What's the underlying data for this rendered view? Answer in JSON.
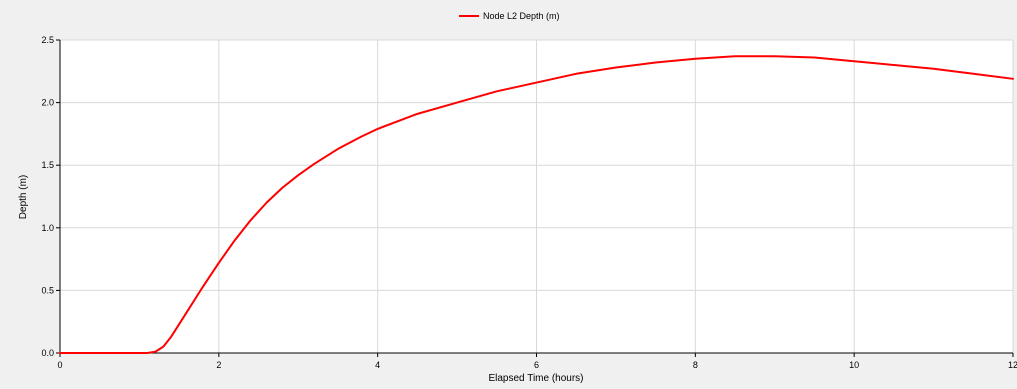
{
  "chart_data": {
    "type": "line",
    "title": "",
    "xlabel": "Elapsed Time (hours)",
    "ylabel": "Depth (m)",
    "xlim": [
      0,
      12
    ],
    "ylim": [
      0,
      2.5
    ],
    "x_ticks": [
      0,
      2,
      4,
      6,
      8,
      10,
      12
    ],
    "x_tick_labels": [
      "0",
      "2",
      "4",
      "6",
      "8",
      "10",
      "12"
    ],
    "y_ticks": [
      0,
      0.5,
      1.0,
      1.5,
      2.0,
      2.5
    ],
    "y_tick_labels": [
      "0.0",
      "0.5",
      "1.0",
      "1.5",
      "2.0",
      "2.5"
    ],
    "grid": true,
    "legend_position": "top-center",
    "series": [
      {
        "name": "Node L2 Depth (m)",
        "color": "#ff0000",
        "x": [
          0,
          1.1,
          1.2,
          1.3,
          1.4,
          1.5,
          1.6,
          1.8,
          2.0,
          2.2,
          2.4,
          2.6,
          2.8,
          3.0,
          3.2,
          3.5,
          3.8,
          4.0,
          4.5,
          5.0,
          5.5,
          6.0,
          6.5,
          7.0,
          7.5,
          8.0,
          8.5,
          9.0,
          9.5,
          10.0,
          10.5,
          11.0,
          11.5,
          12.0
        ],
        "y": [
          0,
          0,
          0.01,
          0.05,
          0.13,
          0.23,
          0.33,
          0.53,
          0.72,
          0.9,
          1.06,
          1.2,
          1.32,
          1.42,
          1.51,
          1.63,
          1.73,
          1.79,
          1.91,
          2.0,
          2.09,
          2.16,
          2.23,
          2.28,
          2.32,
          2.35,
          2.37,
          2.37,
          2.36,
          2.33,
          2.3,
          2.27,
          2.23,
          2.19
        ]
      }
    ]
  }
}
